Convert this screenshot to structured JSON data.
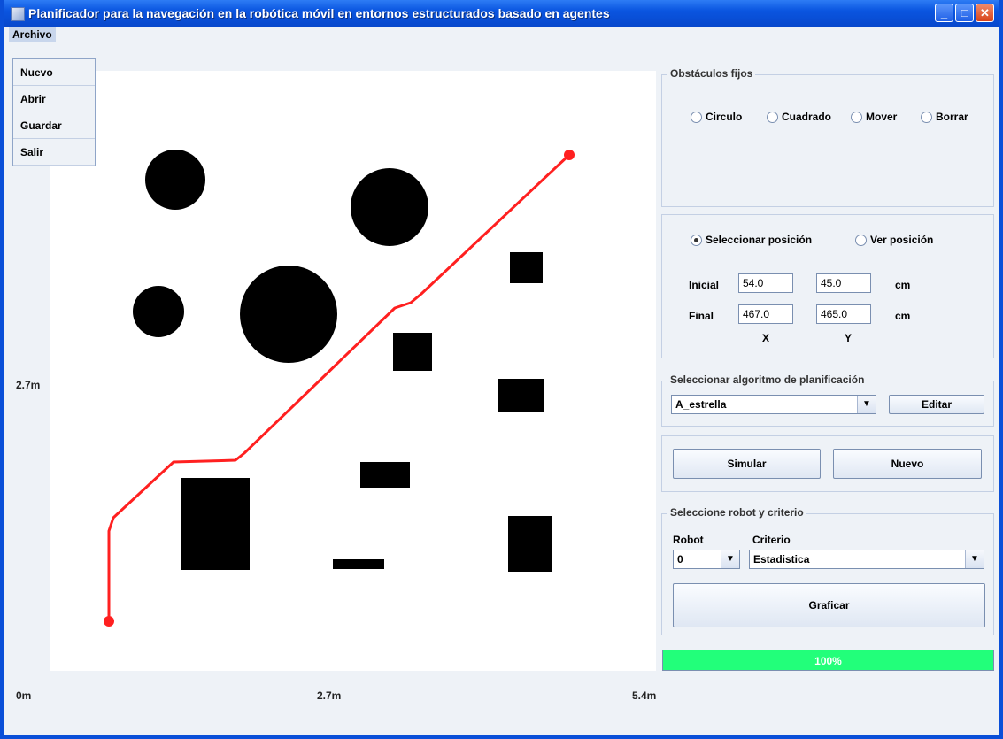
{
  "window": {
    "title": "Planificador para la navegación en la robótica móvil en entornos estructurados basado en agentes"
  },
  "menu": {
    "archivo": "Archivo",
    "items": [
      "Nuevo",
      "Abrir",
      "Guardar",
      "Salir"
    ]
  },
  "axes": {
    "y_mid": "2.7m",
    "x_start": "0m",
    "x_mid": "2.7m",
    "x_end": "5.4m"
  },
  "obstaculos": {
    "legend": "Obstáculos fijos",
    "options": [
      "Circulo",
      "Cuadrado",
      "Mover",
      "Borrar"
    ]
  },
  "posicion": {
    "options": [
      "Seleccionar posición",
      "Ver posición"
    ],
    "selected": "Seleccionar posición",
    "inicial_label": "Inicial",
    "final_label": "Final",
    "inicial_x": "54.0",
    "inicial_y": "45.0",
    "final_x": "467.0",
    "final_y": "465.0",
    "unit": "cm",
    "x_label": "X",
    "y_label": "Y"
  },
  "algoritmo": {
    "legend": "Seleccionar algoritmo de planificación",
    "selected": "A_estrella",
    "edit_button": "Editar"
  },
  "actions": {
    "simular": "Simular",
    "nuevo": "Nuevo"
  },
  "robot": {
    "legend": "Seleccione robot y criterio",
    "robot_label": "Robot",
    "criterio_label": "Criterio",
    "robot_value": "0",
    "criterio_value": "Estadistica",
    "graficar": "Graficar"
  },
  "progress": {
    "percent": 100,
    "label": "100%"
  },
  "colors": {
    "path": "#ff2020",
    "obstacle": "#000000",
    "progress": "#22ff7a",
    "titlebar": "#0a55e0"
  }
}
